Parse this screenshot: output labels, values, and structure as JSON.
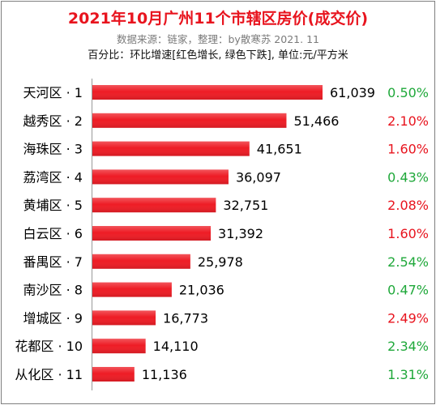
{
  "chart_data": {
    "type": "bar",
    "orientation": "horizontal",
    "title": "2021年10月广州11个市辖区房价(成交价)",
    "subtitle": "数据来源：链家，整理：by散寒苏 2021. 11",
    "note": "百分比：环比增速[红色增长, 绿色下跌], 单位:元/平方米",
    "categories": [
      "天河区 · 1",
      "越秀区 · 2",
      "海珠区 · 3",
      "荔湾区 · 4",
      "黄埔区 · 5",
      "白云区 · 6",
      "番禺区 · 7",
      "南沙区 · 8",
      "增城区 · 9",
      "花都区 · 10",
      "从化区 · 11"
    ],
    "values": [
      61039,
      51466,
      41651,
      36097,
      32751,
      31392,
      25978,
      21036,
      16773,
      14110,
      11136
    ],
    "value_labels": [
      "61,039",
      "51,466",
      "41,651",
      "36,097",
      "32,751",
      "31,392",
      "25,978",
      "21,036",
      "16,773",
      "14,110",
      "11,136"
    ],
    "percent_labels": [
      "0.50%",
      "2.10%",
      "1.60%",
      "0.43%",
      "2.08%",
      "1.60%",
      "2.54%",
      "0.47%",
      "2.49%",
      "2.34%",
      "1.31%"
    ],
    "percent_colors": [
      "#1fa83a",
      "#e8141e",
      "#e8141e",
      "#1fa83a",
      "#e8141e",
      "#e8141e",
      "#1fa83a",
      "#1fa83a",
      "#e8141e",
      "#1fa83a",
      "#1fa83a"
    ],
    "bar_color": "#ee1c25",
    "xlim": [
      0,
      61039
    ],
    "grid": false,
    "legend": "none"
  }
}
